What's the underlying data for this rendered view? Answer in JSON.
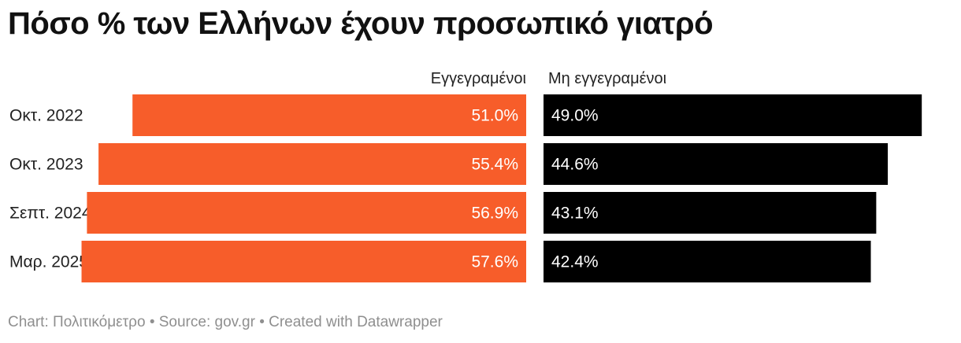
{
  "title": "Πόσο % των Ελλήνων έχουν προσωπικό γιατρό",
  "footer": {
    "chart_credit": "Chart: Πολιτικόμετρο",
    "source": "Source: gov.gr",
    "tool": "Created with Datawrapper",
    "separator": "•"
  },
  "colors": {
    "registered": "#f75d2a",
    "unregistered": "#000000",
    "text_dark": "#222222",
    "footer": "#8f8f8f"
  },
  "chart_data": {
    "type": "bar",
    "orientation": "horizontal",
    "layout": "diverging",
    "title": "Πόσο % των Ελλήνων έχουν προσωπικό γιατρό",
    "categories": [
      "Οκτ. 2022",
      "Οκτ. 2023",
      "Σεπτ. 2024",
      "Μαρ. 2025"
    ],
    "series": [
      {
        "name": "Εγγεγραμένοι",
        "values": [
          51.0,
          55.4,
          56.9,
          57.6
        ],
        "labels": [
          "51.0%",
          "55.4%",
          "56.9%",
          "57.6%"
        ],
        "direction": "left"
      },
      {
        "name": "Μη εγγεγραμένοι",
        "values": [
          49.0,
          44.6,
          43.1,
          42.4
        ],
        "labels": [
          "49.0%",
          "44.6%",
          "43.1%",
          "42.4%"
        ],
        "direction": "right"
      }
    ],
    "xlim": [
      0,
      100
    ],
    "unit": "%",
    "grid": false,
    "legend": "column headers above bars"
  }
}
